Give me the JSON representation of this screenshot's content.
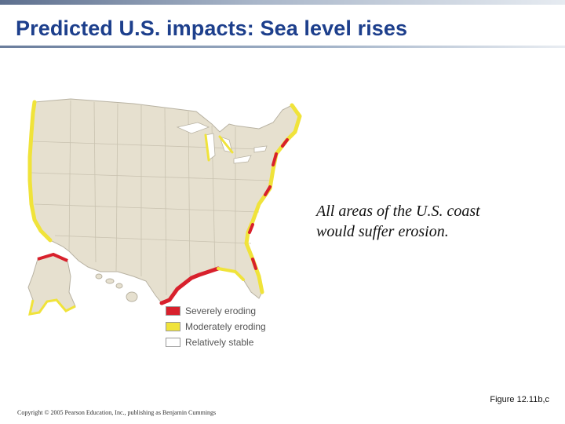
{
  "slide": {
    "title": "Predicted U.S. impacts: Sea level rises",
    "caption_line1": "All areas of the U.S. coast",
    "caption_line2": "would suffer erosion.",
    "figure_ref": "Figure 12.11b,c",
    "copyright": "Copyright © 2005 Pearson Education, Inc., publishing as Benjamin Cummings"
  },
  "map": {
    "land_color": "#e6e0cf",
    "border_color": "#b8b2a2",
    "legend": [
      {
        "label": "Severely eroding",
        "color": "#d8202c"
      },
      {
        "label": "Moderately eroding",
        "color": "#f0e33a"
      },
      {
        "label": "Relatively stable",
        "color": "#ffffff"
      }
    ]
  }
}
